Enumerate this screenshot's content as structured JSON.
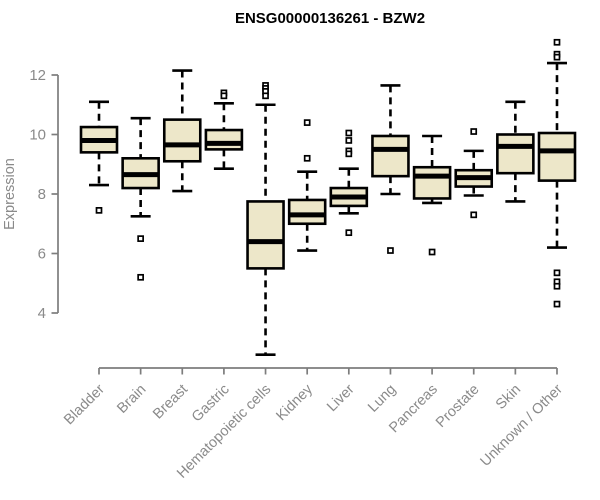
{
  "chart_data": {
    "type": "boxplot",
    "title": "ENSG00000136261 - BZW2",
    "ylabel": "Expression",
    "xlabel": "",
    "ylim": [
      2.5,
      13.3
    ],
    "yticks": [
      12,
      10,
      8,
      6,
      4
    ],
    "grid": false,
    "legend": "none",
    "categories": [
      "Bladder",
      "Brain",
      "Breast",
      "Gastric",
      "Hematopoietic cells",
      "Kidney",
      "Liver",
      "Lung",
      "Pancreas",
      "Prostate",
      "Skin",
      "Unknown / Other"
    ],
    "series": [
      {
        "category": "Bladder",
        "whisker_low": 8.3,
        "q1": 9.4,
        "median": 9.8,
        "q3": 10.25,
        "whisker_high": 11.1,
        "outliers": [
          7.45
        ]
      },
      {
        "category": "Brain",
        "whisker_low": 7.25,
        "q1": 8.2,
        "median": 8.65,
        "q3": 9.2,
        "whisker_high": 10.55,
        "outliers": [
          6.5,
          5.2
        ]
      },
      {
        "category": "Breast",
        "whisker_low": 8.1,
        "q1": 9.1,
        "median": 9.65,
        "q3": 10.5,
        "whisker_high": 12.15,
        "outliers": []
      },
      {
        "category": "Gastric",
        "whisker_low": 8.85,
        "q1": 9.5,
        "median": 9.7,
        "q3": 10.15,
        "whisker_high": 11.05,
        "outliers": [
          11.4,
          11.3
        ]
      },
      {
        "category": "Hematopoietic cells",
        "whisker_low": 2.6,
        "q1": 5.5,
        "median": 6.4,
        "q3": 7.75,
        "whisker_high": 11.0,
        "outliers": [
          11.65,
          11.55,
          11.45,
          11.3
        ]
      },
      {
        "category": "Kidney",
        "whisker_low": 6.1,
        "q1": 7.0,
        "median": 7.3,
        "q3": 7.8,
        "whisker_high": 8.75,
        "outliers": [
          10.4,
          9.2
        ]
      },
      {
        "category": "Liver",
        "whisker_low": 7.35,
        "q1": 7.6,
        "median": 7.9,
        "q3": 8.2,
        "whisker_high": 8.85,
        "outliers": [
          10.05,
          9.8,
          9.45,
          9.35,
          6.7
        ]
      },
      {
        "category": "Lung",
        "whisker_low": 8.0,
        "q1": 8.6,
        "median": 9.5,
        "q3": 9.95,
        "whisker_high": 11.65,
        "outliers": [
          6.1
        ]
      },
      {
        "category": "Pancreas",
        "whisker_low": 7.7,
        "q1": 7.85,
        "median": 8.6,
        "q3": 8.9,
        "whisker_high": 9.95,
        "outliers": [
          6.05
        ]
      },
      {
        "category": "Prostate",
        "whisker_low": 7.95,
        "q1": 8.25,
        "median": 8.55,
        "q3": 8.8,
        "whisker_high": 9.45,
        "outliers": [
          10.1,
          7.3
        ]
      },
      {
        "category": "Skin",
        "whisker_low": 7.75,
        "q1": 8.7,
        "median": 9.6,
        "q3": 10.0,
        "whisker_high": 11.1,
        "outliers": []
      },
      {
        "category": "Unknown / Other",
        "whisker_low": 6.2,
        "q1": 8.45,
        "median": 9.45,
        "q3": 10.05,
        "whisker_high": 12.4,
        "outliers": [
          13.1,
          12.7,
          12.6,
          5.35,
          5.05,
          4.9,
          4.3
        ]
      }
    ],
    "colors": {
      "box_fill": "#ede7c9",
      "box_border": "#000000",
      "axis": "#7d7d7d",
      "tick_text": "#8a8a8a",
      "title_text": "#000000",
      "outlier_fill": "#ffffff"
    }
  }
}
